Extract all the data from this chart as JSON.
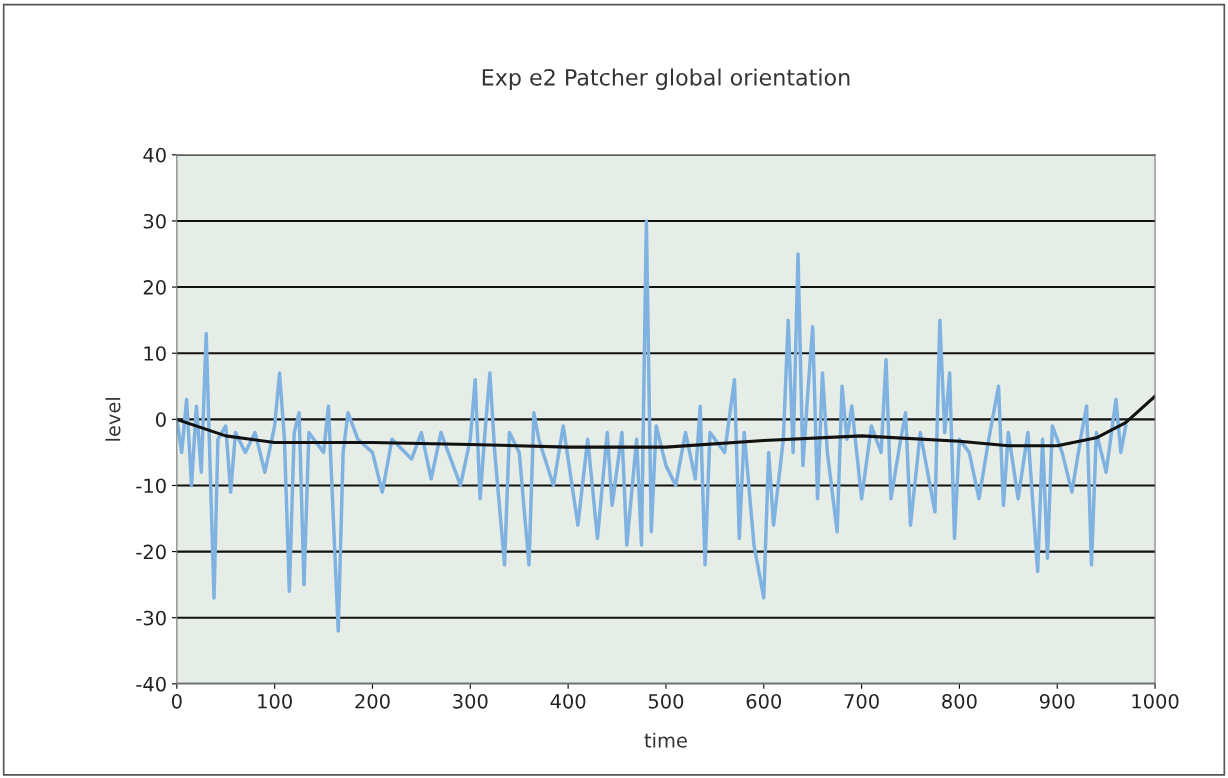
{
  "chart_data": {
    "type": "line",
    "title": "Exp e2 Patcher global orientation",
    "xlabel": "time",
    "ylabel": "level",
    "xlim": [
      0,
      1000
    ],
    "xticks": [
      0,
      100,
      200,
      300,
      400,
      500,
      600,
      700,
      800,
      900,
      1000
    ],
    "ylim": [
      -40,
      40
    ],
    "yticks": [
      -40,
      -30,
      -20,
      -10,
      0,
      10,
      20,
      30,
      40
    ],
    "grid": "y",
    "legend": false,
    "series": [
      {
        "color": "#7fb2e0",
        "x": [
          0,
          5,
          10,
          15,
          20,
          25,
          30,
          33,
          38,
          42,
          50,
          55,
          60,
          70,
          80,
          90,
          100,
          105,
          110,
          115,
          120,
          125,
          130,
          135,
          150,
          155,
          160,
          165,
          170,
          175,
          185,
          200,
          210,
          220,
          240,
          250,
          260,
          270,
          290,
          300,
          305,
          310,
          315,
          320,
          325,
          335,
          340,
          350,
          360,
          365,
          370,
          385,
          395,
          410,
          420,
          430,
          440,
          445,
          455,
          460,
          470,
          475,
          480,
          485,
          490,
          500,
          510,
          520,
          530,
          535,
          540,
          545,
          560,
          570,
          575,
          580,
          590,
          600,
          605,
          610,
          620,
          625,
          630,
          635,
          640,
          645,
          650,
          655,
          660,
          665,
          675,
          680,
          685,
          690,
          700,
          710,
          720,
          725,
          730,
          740,
          745,
          750,
          760,
          775,
          780,
          785,
          790,
          795,
          800,
          810,
          820,
          830,
          840,
          845,
          850,
          860,
          870,
          880,
          885,
          890,
          895,
          905,
          915,
          925,
          930,
          935,
          940,
          950,
          960,
          965,
          970
        ],
        "values": [
          0,
          -5,
          3,
          -10,
          2,
          -8,
          13,
          -2,
          -27,
          -3,
          -1,
          -11,
          -2,
          -5,
          -2,
          -8,
          -1,
          7,
          -3,
          -26,
          -2,
          1,
          -25,
          -2,
          -5,
          2,
          -15,
          -32,
          -5,
          1,
          -3,
          -5,
          -11,
          -3,
          -6,
          -2,
          -9,
          -2,
          -10,
          -3,
          6,
          -12,
          -2,
          7,
          -5,
          -22,
          -2,
          -5,
          -22,
          1,
          -3,
          -10,
          -1,
          -16,
          -3,
          -18,
          -2,
          -13,
          -2,
          -19,
          -3,
          -19,
          30,
          -17,
          -1,
          -7,
          -10,
          -2,
          -9,
          2,
          -22,
          -2,
          -5,
          6,
          -18,
          -2,
          -19,
          -27,
          -5,
          -16,
          -3,
          15,
          -5,
          25,
          -7,
          4,
          14,
          -12,
          7,
          -5,
          -17,
          5,
          -3,
          2,
          -12,
          -1,
          -5,
          9,
          -12,
          -3,
          1,
          -16,
          -2,
          -14,
          15,
          -2,
          7,
          -18,
          -3,
          -5,
          -12,
          -3,
          5,
          -13,
          -2,
          -12,
          -2,
          -23,
          -3,
          -21,
          -1,
          -5,
          -11,
          -2,
          2,
          -22,
          -2,
          -8,
          3,
          -5,
          -1
        ]
      },
      {
        "color": "#111111",
        "x": [
          0,
          50,
          100,
          200,
          300,
          400,
          500,
          600,
          700,
          800,
          850,
          900,
          940,
          970,
          1000
        ],
        "values": [
          0,
          -2.5,
          -3.5,
          -3.5,
          -3.8,
          -4.2,
          -4.2,
          -3.2,
          -2.5,
          -3.3,
          -4.0,
          -4.0,
          -2.8,
          -0.5,
          3.5
        ]
      }
    ]
  }
}
